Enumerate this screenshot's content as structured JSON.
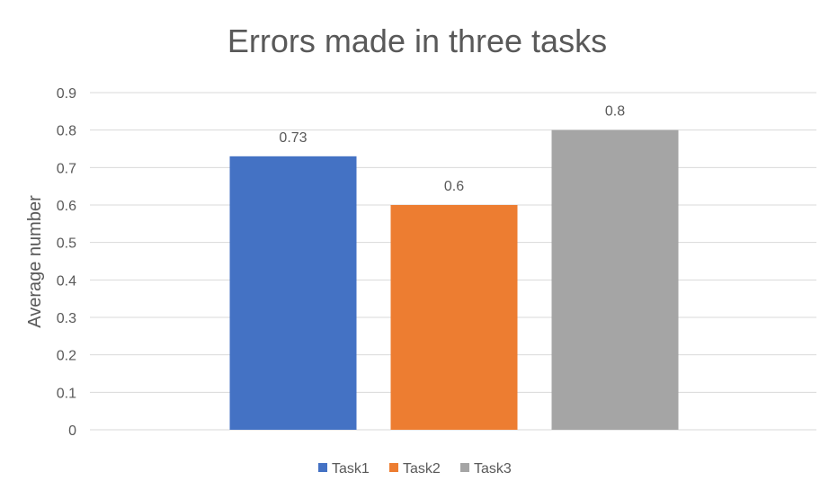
{
  "chart_data": {
    "type": "bar",
    "title": "Errors made in three tasks",
    "xlabel": "",
    "ylabel": "Average number",
    "ylim": [
      0,
      0.9
    ],
    "ytick_step": 0.1,
    "y_ticks": [
      "0",
      "0.1",
      "0.2",
      "0.3",
      "0.4",
      "0.5",
      "0.6",
      "0.7",
      "0.8",
      "0.9"
    ],
    "grid": true,
    "legend_position": "bottom",
    "series": [
      {
        "name": "Task1",
        "value": 0.73,
        "label": "0.73",
        "color": "#4472C4"
      },
      {
        "name": "Task2",
        "value": 0.6,
        "label": "0.6",
        "color": "#ED7D31"
      },
      {
        "name": "Task3",
        "value": 0.8,
        "label": "0.8",
        "color": "#A5A5A5"
      }
    ]
  },
  "colors": {
    "gridline": "#D9D9D9",
    "text": "#595959",
    "title": "#595959"
  }
}
